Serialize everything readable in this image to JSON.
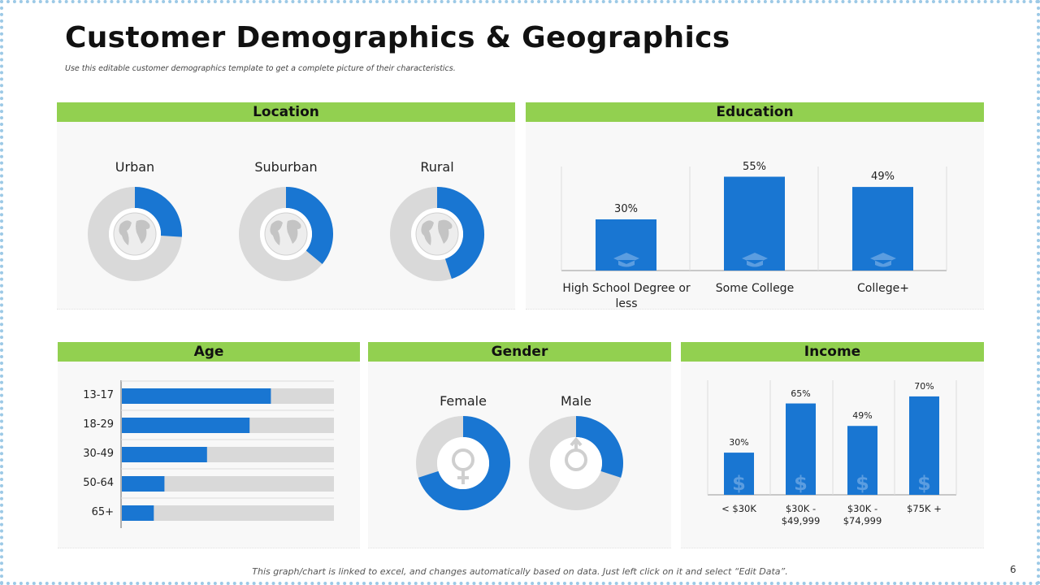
{
  "title": "Customer Demographics & Geographics",
  "subtitle": "Use this editable customer demographics template to get a complete picture of their characteristics.",
  "footer": "This graph/chart is linked to excel, and changes automatically based on data. Just left click on it and select “Edit Data”.",
  "page_number": "6",
  "colors": {
    "accent": "#1976d2",
    "track": "#d9d9d9",
    "header": "#92d050"
  },
  "panels": {
    "location": "Location",
    "education": "Education",
    "age": "Age",
    "gender": "Gender",
    "income": "Income"
  },
  "chart_data": [
    {
      "type": "pie",
      "variant": "donut",
      "panel": "Location",
      "icon": "globe-icon",
      "categories": [
        "Urban",
        "Suburban",
        "Rural"
      ],
      "values": [
        26,
        36,
        45
      ],
      "labels": [
        "26%",
        "36%",
        "45%"
      ]
    },
    {
      "type": "bar",
      "panel": "Education",
      "icon": "graduation-cap-icon",
      "categories": [
        "High School Degree or less",
        "Some College",
        "College+"
      ],
      "values": [
        30,
        55,
        49
      ],
      "labels": [
        "30%",
        "55%",
        "49%"
      ],
      "ylim": [
        0,
        100
      ]
    },
    {
      "type": "bar",
      "orientation": "horizontal",
      "panel": "Age",
      "categories": [
        "13-17",
        "18-29",
        "30-49",
        "50-64",
        "65+"
      ],
      "values": [
        70,
        60,
        40,
        20,
        15
      ],
      "labels": [
        "70%",
        "60%",
        "40%",
        "20%",
        "15%"
      ],
      "xlim": [
        0,
        100
      ]
    },
    {
      "type": "pie",
      "variant": "donut",
      "panel": "Gender",
      "icons": [
        "female-icon",
        "male-icon"
      ],
      "categories": [
        "Female",
        "Male"
      ],
      "values": [
        70,
        30
      ],
      "labels": [
        "70%",
        "30%"
      ]
    },
    {
      "type": "bar",
      "panel": "Income",
      "icon": "dollar-icon",
      "categories": [
        "< $30K",
        "$30K - $49,999",
        "$30K - $74,999",
        "$75K +"
      ],
      "values": [
        30,
        65,
        49,
        70
      ],
      "labels": [
        "30%",
        "65%",
        "49%",
        "70%"
      ],
      "ylim": [
        0,
        100
      ]
    }
  ]
}
